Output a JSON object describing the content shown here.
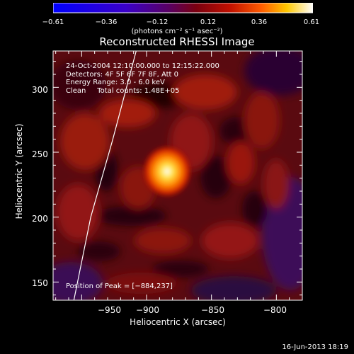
{
  "chart_data": {
    "type": "heatmap",
    "title": "Reconstructed RHESSI Image",
    "xlabel": "Heliocentric X (arcsec)",
    "ylabel": "Heliocentric Y (arcsec)",
    "xlim": [
      -972,
      -780
    ],
    "ylim": [
      136,
      328
    ],
    "xticks": [
      -950,
      -900,
      -850,
      -800
    ],
    "xtick_labels": [
      "−950",
      "−900",
      "−850",
      "−800"
    ],
    "yticks": [
      150,
      200,
      250,
      300
    ],
    "ytick_labels": [
      "150",
      "200",
      "250",
      "300"
    ],
    "colorbar": {
      "range": [
        -0.61,
        0.61
      ],
      "ticks": [
        -0.61,
        -0.36,
        -0.12,
        0.12,
        0.36,
        0.61
      ],
      "tick_labels": [
        "−0.61",
        "−0.36",
        "−0.12",
        "0.12",
        "0.36",
        "0.61"
      ],
      "unit": "(photons cm⁻² s⁻¹ asec⁻²)",
      "colormap": "blue-purple-red-yellow-white"
    },
    "peak": {
      "x": -884,
      "y": 237,
      "value": 0.61
    },
    "annotations": [
      "24-Oct-2004 12:10:00.000 to 12:15:22.000",
      "Detectors: 4F 5F 6F 7F 8F, Att 0",
      "Energy Range: 3.0 - 6.0 keV",
      "Clean     Total counts: 1.48E+05"
    ],
    "peak_label": "Position of Peak = [−884,237]",
    "limb_curve": [
      [
        -956,
        136
      ],
      [
        -943,
        200
      ],
      [
        -926,
        260
      ],
      [
        -908,
        328
      ]
    ]
  },
  "footer": {
    "date": "16-Jun-2013 18:19"
  }
}
